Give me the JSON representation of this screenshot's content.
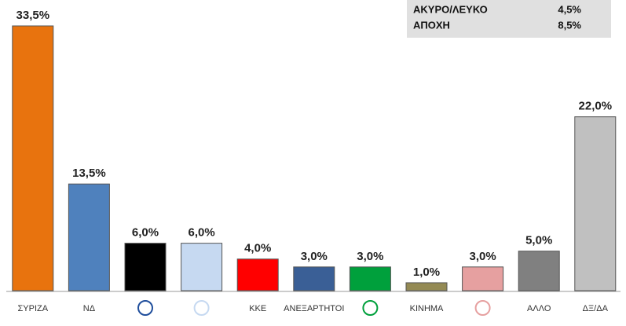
{
  "chart_data": {
    "type": "bar",
    "categories": [
      "ΣΥΡΙΖΑ",
      "ΝΔ",
      null,
      null,
      "ΚΚΕ",
      "ΑΝΕΞΑΡΤΗΤΟΙ",
      null,
      "ΚΙΝΗΜΑ",
      null,
      "ΑΛΛΟ",
      "ΔΞ/ΔΑ"
    ],
    "values": [
      33.5,
      13.5,
      6.0,
      6.0,
      4.0,
      3.0,
      3.0,
      1.0,
      3.0,
      5.0,
      22.0
    ],
    "value_labels": [
      "33,5%",
      "13,5%",
      "6,0%",
      "6,0%",
      "4,0%",
      "3,0%",
      "3,0%",
      "1,0%",
      "3,0%",
      "5,0%",
      "22,0%"
    ],
    "colors": [
      "#e8730e",
      "#4f81bd",
      "#000000",
      "#c6d9f1",
      "#ff0000",
      "#3a5f96",
      "#00a03c",
      "#948a54",
      "#e6a0a0",
      "#808080",
      "#c0c0c0"
    ],
    "summary": [
      {
        "label": "ΑΚΥΡΟ/ΛΕΥΚΟ",
        "value": "4,5%"
      },
      {
        "label": "ΑΠΟΧΗ",
        "value": "8,5%"
      }
    ]
  }
}
